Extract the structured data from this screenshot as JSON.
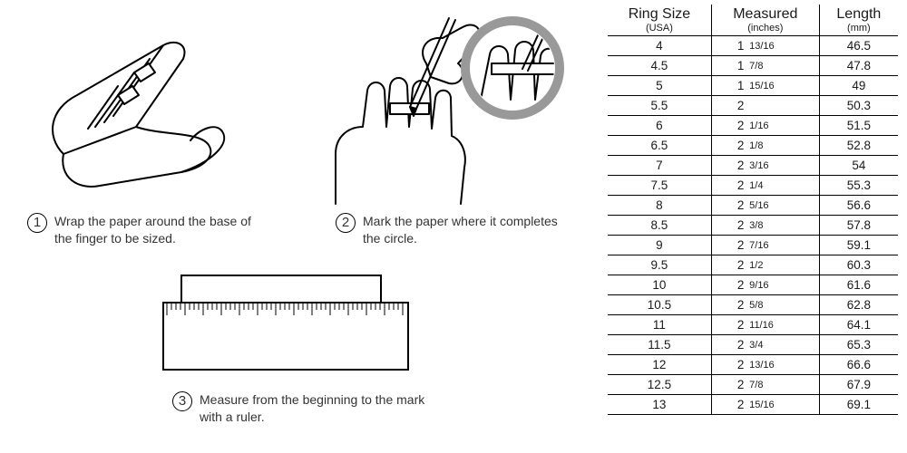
{
  "steps": [
    {
      "num": "1",
      "text": "Wrap the paper around the base of the finger to be sized."
    },
    {
      "num": "2",
      "text": "Mark the paper where it completes the circle."
    },
    {
      "num": "3",
      "text": "Measure from the beginning to the mark with a ruler."
    }
  ],
  "table": {
    "headers": [
      {
        "main": "Ring Size",
        "sub": "(USA)"
      },
      {
        "main": "Measured",
        "sub": "(inches)"
      },
      {
        "main": "Length",
        "sub": "(mm)"
      }
    ],
    "rows": [
      {
        "size": "4",
        "whole": "1",
        "frac": "13/16",
        "mm": "46.5"
      },
      {
        "size": "4.5",
        "whole": "1",
        "frac": "7/8",
        "mm": "47.8"
      },
      {
        "size": "5",
        "whole": "1",
        "frac": "15/16",
        "mm": "49"
      },
      {
        "size": "5.5",
        "whole": "2",
        "frac": "",
        "mm": "50.3"
      },
      {
        "size": "6",
        "whole": "2",
        "frac": "1/16",
        "mm": "51.5"
      },
      {
        "size": "6.5",
        "whole": "2",
        "frac": "1/8",
        "mm": "52.8"
      },
      {
        "size": "7",
        "whole": "2",
        "frac": "3/16",
        "mm": "54"
      },
      {
        "size": "7.5",
        "whole": "2",
        "frac": "1/4",
        "mm": "55.3"
      },
      {
        "size": "8",
        "whole": "2",
        "frac": "5/16",
        "mm": "56.6"
      },
      {
        "size": "8.5",
        "whole": "2",
        "frac": "3/8",
        "mm": "57.8"
      },
      {
        "size": "9",
        "whole": "2",
        "frac": "7/16",
        "mm": "59.1"
      },
      {
        "size": "9.5",
        "whole": "2",
        "frac": "1/2",
        "mm": "60.3"
      },
      {
        "size": "10",
        "whole": "2",
        "frac": "9/16",
        "mm": "61.6"
      },
      {
        "size": "10.5",
        "whole": "2",
        "frac": "5/8",
        "mm": "62.8"
      },
      {
        "size": "11",
        "whole": "2",
        "frac": "11/16",
        "mm": "64.1"
      },
      {
        "size": "11.5",
        "whole": "2",
        "frac": "3/4",
        "mm": "65.3"
      },
      {
        "size": "12",
        "whole": "2",
        "frac": "13/16",
        "mm": "66.6"
      },
      {
        "size": "12.5",
        "whole": "2",
        "frac": "7/8",
        "mm": "67.9"
      },
      {
        "size": "13",
        "whole": "2",
        "frac": "15/16",
        "mm": "69.1"
      }
    ]
  },
  "style": {
    "stroke": "#000000",
    "circle_stroke": "#999999",
    "text_color": "#333333"
  }
}
